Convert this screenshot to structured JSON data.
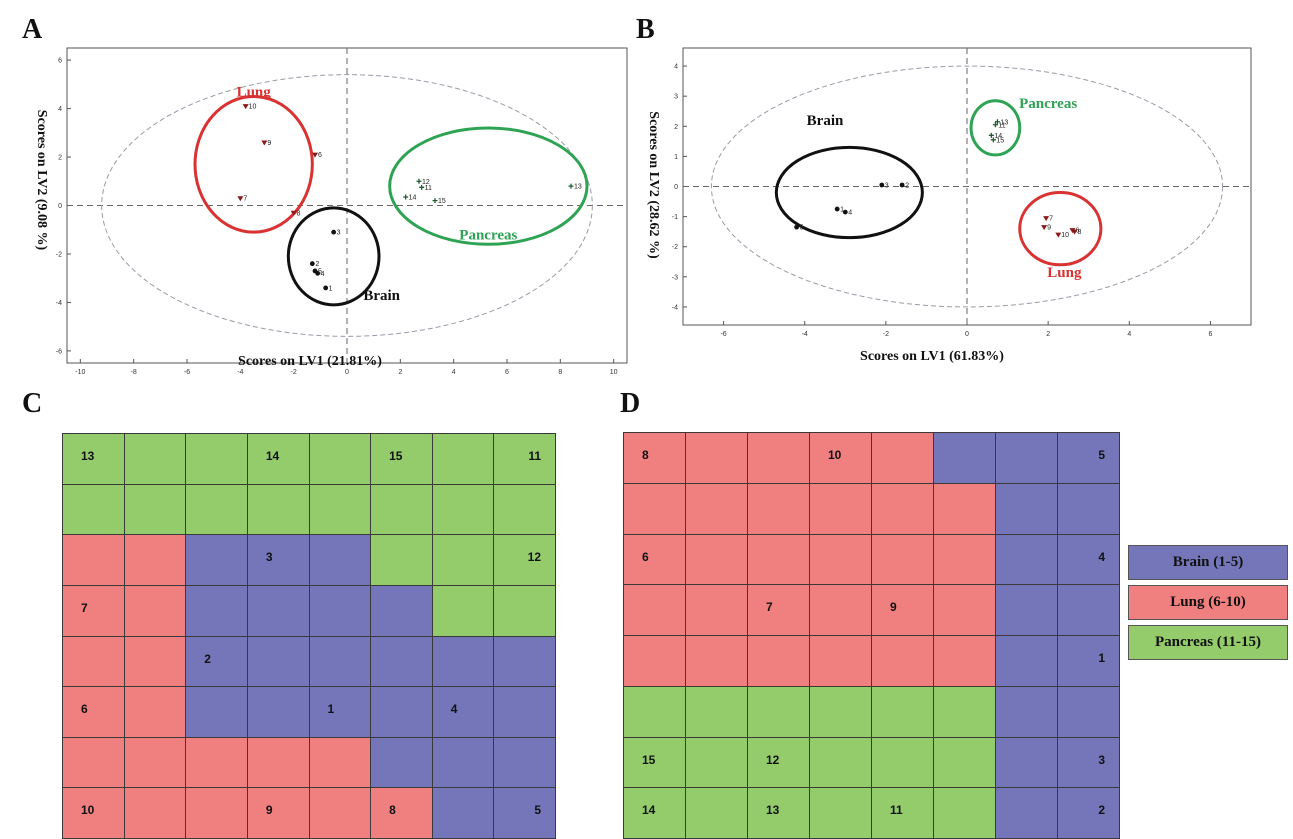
{
  "panels": {
    "a": "A",
    "b": "B",
    "c": "C",
    "d": "D"
  },
  "colors": {
    "brain": "#7476b9",
    "lung": "#f07f80",
    "pancreas": "#94cc6c",
    "lung_ring": "#d93232",
    "pancreas_ring": "#2fa354",
    "brain_ring": "#111111",
    "conf_ellipse": "#9a9aa8"
  },
  "legend": [
    {
      "label": "Brain (1-5)",
      "group": "brain"
    },
    {
      "label": "Lung (6-10)",
      "group": "lung"
    },
    {
      "label": "Pancreas (11-15)",
      "group": "pancreas"
    }
  ],
  "chart_data": [
    {
      "type": "scatter",
      "panel": "A",
      "xlabel": "Scores on LV1  (21.81%)",
      "ylabel": "Scores on LV2  (9.08 %)",
      "xlim": [
        -10.5,
        10.5
      ],
      "ylim": [
        -6.5,
        6.5
      ],
      "xticks": [
        -10,
        -8,
        -6,
        -4,
        -2,
        0,
        2,
        4,
        6,
        8,
        10
      ],
      "yticks": [
        -6,
        -4,
        -2,
        0,
        2,
        4,
        6
      ],
      "ellipse": {
        "cx": 0,
        "cy": 0,
        "rx": 9.2,
        "ry": 5.4
      },
      "groups": [
        {
          "name": "Lung",
          "label_at": [
            -3.5,
            4.5
          ],
          "ring": {
            "cx": -3.5,
            "cy": 1.7,
            "rx": 2.2,
            "ry": 2.8
          }
        },
        {
          "name": "Pancreas",
          "label_at": [
            5.3,
            -1.4
          ],
          "ring": {
            "cx": 5.3,
            "cy": 0.8,
            "rx": 3.7,
            "ry": 2.4
          }
        },
        {
          "name": "Brain",
          "label_at": [
            1.3,
            -3.9
          ],
          "ring": {
            "cx": -0.5,
            "cy": -2.1,
            "rx": 1.7,
            "ry": 2.0
          }
        }
      ],
      "points": [
        {
          "label": "10",
          "group": "lung",
          "x": -3.8,
          "y": 4.1
        },
        {
          "label": "9",
          "group": "lung",
          "x": -3.1,
          "y": 2.6
        },
        {
          "label": "6",
          "group": "lung",
          "x": -1.2,
          "y": 2.1
        },
        {
          "label": "7",
          "group": "lung",
          "x": -4.0,
          "y": 0.3
        },
        {
          "label": "8",
          "group": "lung",
          "x": -2.0,
          "y": -0.3
        },
        {
          "label": "12",
          "group": "pancreas",
          "x": 2.7,
          "y": 1.0
        },
        {
          "label": "11",
          "group": "pancreas",
          "x": 2.8,
          "y": 0.75
        },
        {
          "label": "14",
          "group": "pancreas",
          "x": 2.2,
          "y": 0.35
        },
        {
          "label": "15",
          "group": "pancreas",
          "x": 3.3,
          "y": 0.2
        },
        {
          "label": "13",
          "group": "pancreas",
          "x": 8.4,
          "y": 0.8
        },
        {
          "label": "3",
          "group": "brain",
          "x": -0.5,
          "y": -1.1
        },
        {
          "label": "2",
          "group": "brain",
          "x": -1.3,
          "y": -2.4
        },
        {
          "label": "4",
          "group": "brain",
          "x": -1.1,
          "y": -2.8
        },
        {
          "label": "5",
          "group": "brain",
          "x": -1.2,
          "y": -2.7
        },
        {
          "label": "1",
          "group": "brain",
          "x": -0.8,
          "y": -3.4
        }
      ]
    },
    {
      "type": "scatter",
      "panel": "B",
      "xlabel": "Scores on LV1  (61.83%)",
      "ylabel": "Scores on LV2  (28.62 %)",
      "xlim": [
        -7,
        7
      ],
      "ylim": [
        -4.6,
        4.6
      ],
      "xticks": [
        -6,
        -4,
        -2,
        0,
        2,
        4,
        6
      ],
      "yticks": [
        -4,
        -3,
        -2,
        -1,
        0,
        1,
        2,
        3,
        4
      ],
      "ellipse": {
        "cx": 0,
        "cy": 0,
        "rx": 6.3,
        "ry": 4.0
      },
      "groups": [
        {
          "name": "Brain",
          "label_at": [
            -3.5,
            2.05
          ],
          "ring": {
            "cx": -2.9,
            "cy": -0.2,
            "rx": 1.8,
            "ry": 1.5
          }
        },
        {
          "name": "Pancreas",
          "label_at": [
            2.0,
            2.6
          ],
          "ring": {
            "cx": 0.7,
            "cy": 1.95,
            "rx": 0.6,
            "ry": 0.9
          }
        },
        {
          "name": "Lung",
          "label_at": [
            2.4,
            -3.0
          ],
          "ring": {
            "cx": 2.3,
            "cy": -1.4,
            "rx": 1.0,
            "ry": 1.2
          }
        }
      ],
      "points": [
        {
          "label": "3",
          "group": "brain",
          "x": -2.1,
          "y": 0.05
        },
        {
          "label": "2",
          "group": "brain",
          "x": -1.6,
          "y": 0.05
        },
        {
          "label": "1",
          "group": "brain",
          "x": -3.2,
          "y": -0.75
        },
        {
          "label": "4",
          "group": "brain",
          "x": -3.0,
          "y": -0.85
        },
        {
          "label": "5",
          "group": "brain",
          "x": -4.2,
          "y": -1.35
        },
        {
          "label": "13",
          "group": "pancreas",
          "x": 0.75,
          "y": 2.15
        },
        {
          "label": "11",
          "group": "pancreas",
          "x": 0.7,
          "y": 2.05
        },
        {
          "label": "14",
          "group": "pancreas",
          "x": 0.6,
          "y": 1.7
        },
        {
          "label": "15",
          "group": "pancreas",
          "x": 0.65,
          "y": 1.55
        },
        {
          "label": "7",
          "group": "lung",
          "x": 1.95,
          "y": -1.05
        },
        {
          "label": "9",
          "group": "lung",
          "x": 1.9,
          "y": -1.35
        },
        {
          "label": "6",
          "group": "lung",
          "x": 2.6,
          "y": -1.45
        },
        {
          "label": "8",
          "group": "lung",
          "x": 2.65,
          "y": -1.5
        },
        {
          "label": "10",
          "group": "lung",
          "x": 2.25,
          "y": -1.6
        }
      ]
    },
    {
      "type": "heatmap",
      "panel": "C",
      "cols": 8,
      "rows": 8,
      "grid": [
        [
          "pancreas",
          "pancreas",
          "pancreas",
          "pancreas",
          "pancreas",
          "pancreas",
          "pancreas",
          "pancreas"
        ],
        [
          "pancreas",
          "pancreas",
          "pancreas",
          "pancreas",
          "pancreas",
          "pancreas",
          "pancreas",
          "pancreas"
        ],
        [
          "lung",
          "lung",
          "brain",
          "brain",
          "brain",
          "pancreas",
          "pancreas",
          "pancreas"
        ],
        [
          "lung",
          "lung",
          "brain",
          "brain",
          "brain",
          "brain",
          "pancreas",
          "pancreas"
        ],
        [
          "lung",
          "lung",
          "brain",
          "brain",
          "brain",
          "brain",
          "brain",
          "brain"
        ],
        [
          "lung",
          "lung",
          "brain",
          "brain",
          "brain",
          "brain",
          "brain",
          "brain"
        ],
        [
          "lung",
          "lung",
          "lung",
          "lung",
          "lung",
          "brain",
          "brain",
          "brain"
        ],
        [
          "lung",
          "lung",
          "lung",
          "lung",
          "lung",
          "lung",
          "brain",
          "brain"
        ]
      ],
      "labels": [
        {
          "text": "13",
          "row": 0,
          "col": 0
        },
        {
          "text": "14",
          "row": 0,
          "col": 3
        },
        {
          "text": "15",
          "row": 0,
          "col": 5
        },
        {
          "text": "11",
          "row": 0,
          "col": 7
        },
        {
          "text": "3",
          "row": 2,
          "col": 3
        },
        {
          "text": "12",
          "row": 2,
          "col": 7
        },
        {
          "text": "7",
          "row": 3,
          "col": 0
        },
        {
          "text": "2",
          "row": 4,
          "col": 2
        },
        {
          "text": "6",
          "row": 5,
          "col": 0
        },
        {
          "text": "1",
          "row": 5,
          "col": 4
        },
        {
          "text": "4",
          "row": 5,
          "col": 6
        },
        {
          "text": "10",
          "row": 7,
          "col": 0
        },
        {
          "text": "9",
          "row": 7,
          "col": 3
        },
        {
          "text": "8",
          "row": 7,
          "col": 5
        },
        {
          "text": "5",
          "row": 7,
          "col": 7
        }
      ]
    },
    {
      "type": "heatmap",
      "panel": "D",
      "cols": 8,
      "rows": 8,
      "grid": [
        [
          "lung",
          "lung",
          "lung",
          "lung",
          "lung",
          "brain",
          "brain",
          "brain"
        ],
        [
          "lung",
          "lung",
          "lung",
          "lung",
          "lung",
          "lung",
          "brain",
          "brain"
        ],
        [
          "lung",
          "lung",
          "lung",
          "lung",
          "lung",
          "lung",
          "brain",
          "brain"
        ],
        [
          "lung",
          "lung",
          "lung",
          "lung",
          "lung",
          "lung",
          "brain",
          "brain"
        ],
        [
          "lung",
          "lung",
          "lung",
          "lung",
          "lung",
          "lung",
          "brain",
          "brain"
        ],
        [
          "pancreas",
          "pancreas",
          "pancreas",
          "pancreas",
          "pancreas",
          "pancreas",
          "brain",
          "brain"
        ],
        [
          "pancreas",
          "pancreas",
          "pancreas",
          "pancreas",
          "pancreas",
          "pancreas",
          "brain",
          "brain"
        ],
        [
          "pancreas",
          "pancreas",
          "pancreas",
          "pancreas",
          "pancreas",
          "pancreas",
          "brain",
          "brain"
        ]
      ],
      "labels": [
        {
          "text": "8",
          "row": 0,
          "col": 0
        },
        {
          "text": "10",
          "row": 0,
          "col": 3
        },
        {
          "text": "5",
          "row": 0,
          "col": 7
        },
        {
          "text": "6",
          "row": 2,
          "col": 0
        },
        {
          "text": "4",
          "row": 2,
          "col": 7
        },
        {
          "text": "7",
          "row": 3,
          "col": 2
        },
        {
          "text": "9",
          "row": 3,
          "col": 4
        },
        {
          "text": "1",
          "row": 4,
          "col": 7
        },
        {
          "text": "15",
          "row": 6,
          "col": 0
        },
        {
          "text": "12",
          "row": 6,
          "col": 2
        },
        {
          "text": "3",
          "row": 6,
          "col": 7
        },
        {
          "text": "14",
          "row": 7,
          "col": 0
        },
        {
          "text": "13",
          "row": 7,
          "col": 2
        },
        {
          "text": "11",
          "row": 7,
          "col": 4
        },
        {
          "text": "2",
          "row": 7,
          "col": 7
        }
      ]
    }
  ]
}
